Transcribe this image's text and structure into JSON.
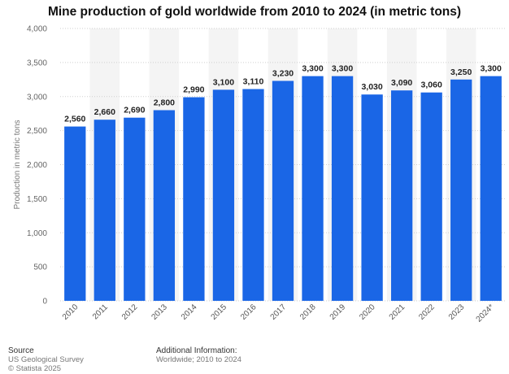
{
  "chart_data": {
    "type": "bar",
    "title": "Mine production of gold worldwide from 2010 to 2024 (in metric tons)",
    "ylabel": "Production in metric tons",
    "xlabel": "",
    "categories": [
      "2010",
      "2011",
      "2012",
      "2013",
      "2014",
      "2015",
      "2016",
      "2017",
      "2018",
      "2019",
      "2020",
      "2021",
      "2022",
      "2023",
      "2024*"
    ],
    "values": [
      2560,
      2660,
      2690,
      2800,
      2990,
      3100,
      3110,
      3230,
      3300,
      3300,
      3030,
      3090,
      3060,
      3250,
      3300
    ],
    "value_labels": [
      "2,560",
      "2,660",
      "2,690",
      "2,800",
      "2,990",
      "3,100",
      "3,110",
      "3,230",
      "3,300",
      "3,300",
      "3,030",
      "3,090",
      "3,060",
      "3,250",
      "3,300"
    ],
    "ylim": [
      0,
      4000
    ],
    "yticks": [
      0,
      500,
      1000,
      1500,
      2000,
      2500,
      3000,
      3500,
      4000
    ],
    "ytick_labels": [
      "0",
      "500",
      "1,000",
      "1,500",
      "2,000",
      "2,500",
      "3,000",
      "3,500",
      "4,000"
    ],
    "bar_color": "#1a66e6",
    "grid": true,
    "legend": "none"
  },
  "footer": {
    "source_heading": "Source",
    "source_line1": "US Geological Survey",
    "source_line2": "© Statista 2025",
    "info_heading": "Additional Information:",
    "info_line1": "Worldwide; 2010 to 2024"
  }
}
